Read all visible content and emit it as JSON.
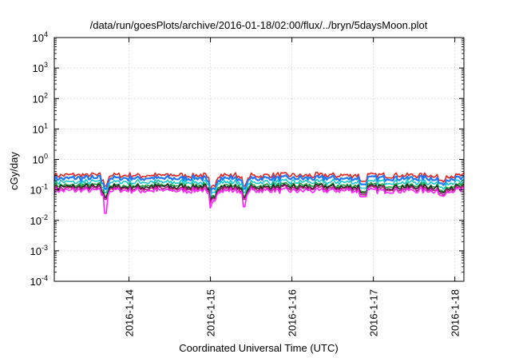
{
  "chart_data": {
    "type": "line",
    "title": "/data/run/goesPlots/archive/2016-01-18/02:00/flux/../bryn/5daysMoon.plot",
    "xlabel": "Coordinated Universal Time (UTC)",
    "ylabel": "cGy/day",
    "yscale": "log",
    "ylim": [
      0.0001,
      10000
    ],
    "xlim": [
      "2016-01-13T02:00",
      "2016-01-18T02:40"
    ],
    "x_ticks": [
      "2016-1-14",
      "2016-1-15",
      "2016-1-16",
      "2016-1-17",
      "2016-1-18"
    ],
    "y_ticks": [
      {
        "base": "10",
        "exp": "-4"
      },
      {
        "base": "10",
        "exp": "-3"
      },
      {
        "base": "10",
        "exp": "-2"
      },
      {
        "base": "10",
        "exp": "-1"
      },
      {
        "base": "10",
        "exp": "0"
      },
      {
        "base": "10",
        "exp": "1"
      },
      {
        "base": "10",
        "exp": "2"
      },
      {
        "base": "10",
        "exp": "3"
      },
      {
        "base": "10",
        "exp": "4"
      }
    ],
    "grid": true,
    "legend": "none",
    "series": [
      {
        "color": "#e3241f",
        "level": 0.3
      },
      {
        "color": "#1f78ff",
        "level": 0.24
      },
      {
        "color": "#18c8ca",
        "level": 0.18
      },
      {
        "color": "#1f9a3a",
        "level": 0.14
      },
      {
        "color": "#222222",
        "level": 0.125
      },
      {
        "color": "#b0207a",
        "level": 0.11
      },
      {
        "color": "#ff22ff",
        "level": 0.095
      }
    ],
    "dips": [
      {
        "date": "2016-01-13T17:00",
        "value": 0.017
      },
      {
        "date": "2016-01-15T00:10",
        "value": 0.035
      },
      {
        "date": "2016-01-15T00:40",
        "value": 0.045
      },
      {
        "date": "2016-01-15T10:00",
        "value": 0.028
      },
      {
        "date": "2016-01-16T21:00",
        "value": 0.06
      },
      {
        "date": "2016-01-17T20:00",
        "value": 0.065
      }
    ]
  }
}
